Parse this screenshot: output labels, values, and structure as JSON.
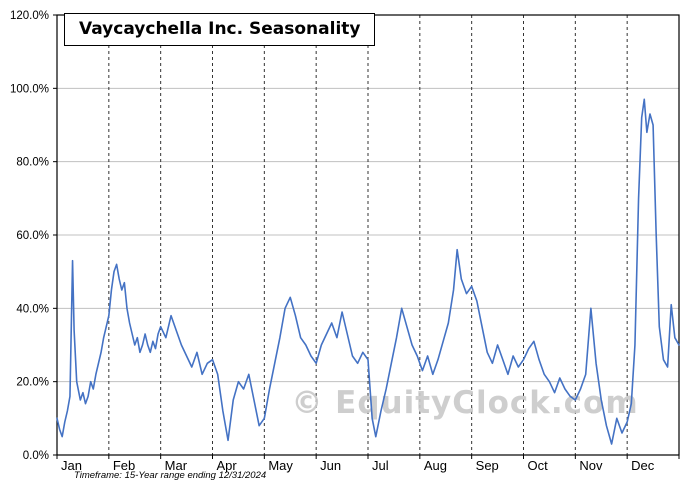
{
  "header": {
    "title": "Vaycaychella Inc. Seasonality"
  },
  "footer": {
    "timeframe_note": "Timeframe: 15-Year range ending 12/31/2024"
  },
  "watermark": "© EquityClock.com",
  "colors": {
    "line": "#4472C4",
    "grid": "#C0C0C0",
    "axis": "#000000",
    "month_divider": "#333333",
    "watermark": "#C9C9C9"
  },
  "chart_data": {
    "type": "line",
    "title": "Vaycaychella Inc. Seasonality",
    "subtitle": "Timeframe: 15-Year range ending 12/31/2024",
    "xlabel": "",
    "ylabel": "",
    "x_unit": "month fraction (0 = start of Jan, 12 = end of Dec)",
    "y_unit": "percent",
    "ylim": [
      0,
      120
    ],
    "xlim": [
      0,
      12
    ],
    "grid": true,
    "legend": false,
    "y_ticks": [
      0,
      20,
      40,
      60,
      80,
      100,
      120
    ],
    "y_tick_labels": [
      "0.0%",
      "20.0%",
      "40.0%",
      "60.0%",
      "80.0%",
      "100.0%",
      "120.0%"
    ],
    "categories": [
      "Jan",
      "Feb",
      "Mar",
      "Apr",
      "May",
      "Jun",
      "Jul",
      "Aug",
      "Sep",
      "Oct",
      "Nov",
      "Dec"
    ],
    "series": [
      {
        "name": "Seasonality",
        "x": [
          0.0,
          0.05,
          0.1,
          0.15,
          0.2,
          0.25,
          0.3,
          0.33,
          0.38,
          0.45,
          0.5,
          0.55,
          0.6,
          0.65,
          0.7,
          0.75,
          0.8,
          0.85,
          0.9,
          0.95,
          1.0,
          1.05,
          1.1,
          1.15,
          1.2,
          1.25,
          1.3,
          1.35,
          1.4,
          1.45,
          1.5,
          1.55,
          1.6,
          1.65,
          1.7,
          1.75,
          1.8,
          1.85,
          1.9,
          1.95,
          2.0,
          2.1,
          2.2,
          2.3,
          2.4,
          2.5,
          2.6,
          2.7,
          2.8,
          2.9,
          3.0,
          3.1,
          3.2,
          3.3,
          3.4,
          3.5,
          3.6,
          3.7,
          3.8,
          3.9,
          4.0,
          4.1,
          4.2,
          4.3,
          4.4,
          4.5,
          4.6,
          4.7,
          4.8,
          4.9,
          5.0,
          5.1,
          5.2,
          5.3,
          5.4,
          5.5,
          5.6,
          5.7,
          5.8,
          5.9,
          6.0,
          6.08,
          6.15,
          6.25,
          6.35,
          6.45,
          6.55,
          6.65,
          6.75,
          6.85,
          6.95,
          7.05,
          7.15,
          7.25,
          7.35,
          7.45,
          7.55,
          7.65,
          7.72,
          7.8,
          7.9,
          8.0,
          8.1,
          8.2,
          8.3,
          8.4,
          8.5,
          8.6,
          8.7,
          8.8,
          8.9,
          9.0,
          9.1,
          9.2,
          9.3,
          9.4,
          9.5,
          9.6,
          9.7,
          9.8,
          9.9,
          10.0,
          10.1,
          10.2,
          10.3,
          10.4,
          10.5,
          10.6,
          10.7,
          10.8,
          10.9,
          11.0,
          11.08,
          11.15,
          11.22,
          11.28,
          11.33,
          11.38,
          11.44,
          11.5,
          11.56,
          11.62,
          11.7,
          11.78,
          11.85,
          11.92,
          12.0
        ],
        "y": [
          10,
          7,
          5,
          9,
          12,
          16,
          53,
          34,
          20,
          15,
          17,
          14,
          16,
          20,
          18,
          22,
          25,
          28,
          32,
          35,
          38,
          45,
          50,
          52,
          48,
          45,
          47,
          40,
          36,
          33,
          30,
          32,
          28,
          30,
          33,
          30,
          28,
          31,
          29,
          33,
          35,
          32,
          38,
          34,
          30,
          27,
          24,
          28,
          22,
          25,
          26,
          22,
          12,
          4,
          15,
          20,
          18,
          22,
          15,
          8,
          10,
          18,
          25,
          32,
          40,
          43,
          38,
          32,
          30,
          27,
          25,
          30,
          33,
          36,
          32,
          39,
          33,
          27,
          25,
          28,
          26,
          10,
          5,
          12,
          18,
          25,
          32,
          40,
          35,
          30,
          27,
          23,
          27,
          22,
          26,
          31,
          36,
          45,
          56,
          48,
          44,
          46,
          42,
          35,
          28,
          25,
          30,
          26,
          22,
          27,
          24,
          26,
          29,
          31,
          26,
          22,
          20,
          17,
          21,
          18,
          16,
          15,
          18,
          22,
          40,
          25,
          15,
          8,
          3,
          10,
          6,
          9,
          14,
          30,
          70,
          92,
          97,
          88,
          93,
          90,
          60,
          35,
          26,
          24,
          41,
          32,
          30
        ]
      }
    ]
  }
}
